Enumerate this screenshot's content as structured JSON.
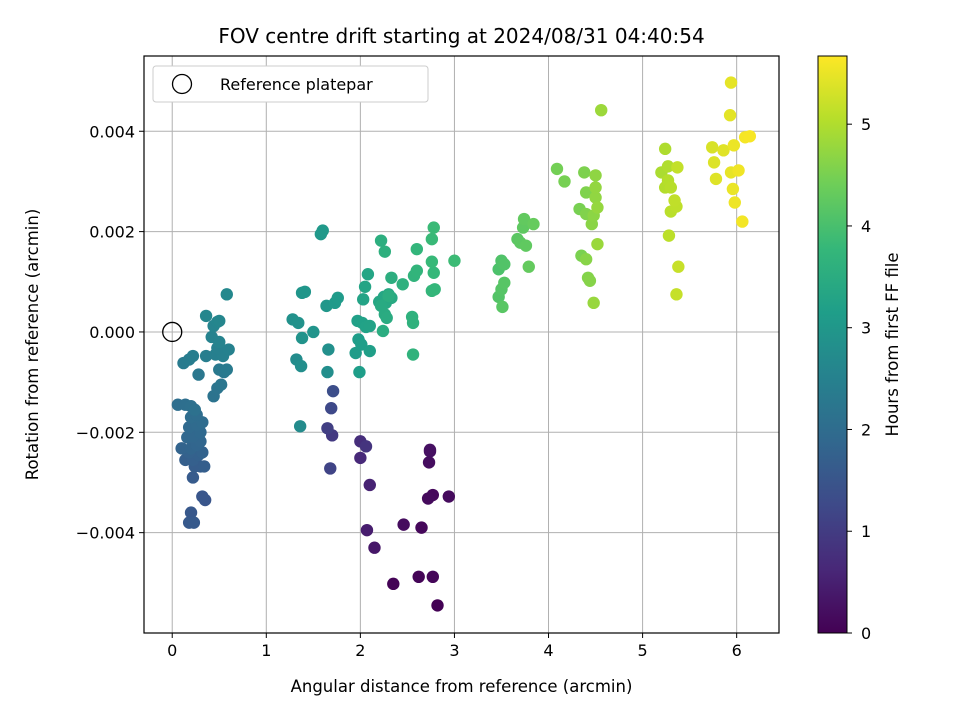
{
  "chart_data": {
    "type": "scatter",
    "title": "FOV centre drift starting at 2024/08/31 04:40:54",
    "xlabel": "Angular distance from reference (arcmin)",
    "ylabel": "Rotation from reference (arcmin)",
    "xlim": [
      -0.3,
      6.45
    ],
    "ylim": [
      -0.006,
      0.0055
    ],
    "x_ticks": [
      "0",
      "1",
      "2",
      "3",
      "4",
      "5",
      "6"
    ],
    "y_ticks": [
      "−0.004",
      "−0.002",
      "0.000",
      "0.002",
      "0.004"
    ],
    "grid": true,
    "legend": {
      "location": "upper-left",
      "entries": [
        "Reference platepar"
      ]
    },
    "reference_point": {
      "x": 0.0,
      "y": 0.0
    },
    "colorbar": {
      "label": "Hours from first FF file",
      "colormap": "viridis",
      "range": [
        0,
        5.67
      ],
      "ticks": [
        "0",
        "1",
        "2",
        "3",
        "4",
        "5"
      ],
      "stops": [
        "#440154",
        "#482878",
        "#3e4a89",
        "#31688e",
        "#26828e",
        "#1f9e89",
        "#35b779",
        "#6ece58",
        "#b5de2b",
        "#fde725"
      ]
    },
    "points": [
      [
        2.82,
        -0.00545,
        0.02
      ],
      [
        2.35,
        -0.00502,
        0.04
      ],
      [
        2.62,
        -0.00488,
        0.06
      ],
      [
        2.77,
        -0.00488,
        0.08
      ],
      [
        2.65,
        -0.0039,
        0.1
      ],
      [
        2.77,
        -0.00325,
        0.12
      ],
      [
        2.72,
        -0.00332,
        0.14
      ],
      [
        2.94,
        -0.00328,
        0.16
      ],
      [
        2.46,
        -0.00384,
        0.18
      ],
      [
        2.73,
        -0.0026,
        0.2
      ],
      [
        2.74,
        -0.00238,
        0.22
      ],
      [
        2.74,
        -0.00235,
        0.25
      ],
      [
        2.15,
        -0.0043,
        0.35
      ],
      [
        2.07,
        -0.00395,
        0.45
      ],
      [
        2.1,
        -0.00305,
        0.55
      ],
      [
        2.0,
        -0.00251,
        0.65
      ],
      [
        2.0,
        -0.00218,
        0.75
      ],
      [
        2.06,
        -0.00228,
        0.85
      ],
      [
        1.7,
        -0.00206,
        0.95
      ],
      [
        1.65,
        -0.00192,
        1.05
      ],
      [
        1.68,
        -0.00272,
        1.15
      ],
      [
        1.69,
        -0.00152,
        1.25
      ],
      [
        1.71,
        -0.00118,
        1.35
      ],
      [
        0.35,
        -0.00335,
        1.5
      ],
      [
        0.32,
        -0.00328,
        1.52
      ],
      [
        0.2,
        -0.0036,
        1.55
      ],
      [
        0.18,
        -0.0038,
        1.58
      ],
      [
        0.23,
        -0.0038,
        1.6
      ],
      [
        0.22,
        -0.0029,
        1.62
      ],
      [
        0.3,
        -0.00268,
        1.64
      ],
      [
        0.24,
        -0.00268,
        1.66
      ],
      [
        0.34,
        -0.00268,
        1.68
      ],
      [
        0.14,
        -0.00255,
        1.7
      ],
      [
        0.22,
        -0.00255,
        1.72
      ],
      [
        0.28,
        -0.00245,
        1.74
      ],
      [
        0.18,
        -0.0024,
        1.76
      ],
      [
        0.32,
        -0.0024,
        1.78
      ],
      [
        0.1,
        -0.00232,
        1.8
      ],
      [
        0.2,
        -0.00232,
        1.82
      ],
      [
        0.26,
        -0.00225,
        1.84
      ],
      [
        0.3,
        -0.00218,
        1.86
      ],
      [
        0.16,
        -0.0021,
        1.88
      ],
      [
        0.22,
        -0.00208,
        1.9
      ],
      [
        0.3,
        -0.002,
        1.92
      ],
      [
        0.18,
        -0.0019,
        1.94
      ],
      [
        0.26,
        -0.00185,
        1.96
      ],
      [
        0.32,
        -0.0018,
        1.98
      ],
      [
        0.2,
        -0.0017,
        2.0
      ],
      [
        0.26,
        -0.00165,
        2.02
      ],
      [
        0.06,
        -0.00145,
        2.04
      ],
      [
        0.14,
        -0.00145,
        2.06
      ],
      [
        0.2,
        -0.00148,
        2.08
      ],
      [
        0.24,
        -0.00155,
        2.1
      ],
      [
        0.44,
        -0.00128,
        2.15
      ],
      [
        0.48,
        -0.00112,
        2.18
      ],
      [
        0.52,
        -0.00105,
        2.22
      ],
      [
        0.28,
        -0.00085,
        2.25
      ],
      [
        0.55,
        -0.0008,
        2.28
      ],
      [
        0.5,
        -0.00075,
        2.3
      ],
      [
        0.58,
        -0.00075,
        2.33
      ],
      [
        0.12,
        -0.00062,
        2.36
      ],
      [
        0.18,
        -0.00055,
        2.38
      ],
      [
        0.22,
        -0.00048,
        2.4
      ],
      [
        0.36,
        -0.00048,
        2.42
      ],
      [
        0.46,
        -0.00045,
        2.44
      ],
      [
        0.54,
        -0.00048,
        2.46
      ],
      [
        0.48,
        -0.00032,
        2.48
      ],
      [
        0.6,
        -0.00035,
        2.5
      ],
      [
        0.42,
        -0.0001,
        2.52
      ],
      [
        0.5,
        -0.0002,
        2.54
      ],
      [
        0.44,
        0.00012,
        2.56
      ],
      [
        0.48,
        0.0002,
        2.58
      ],
      [
        0.36,
        0.00032,
        2.6
      ],
      [
        0.5,
        0.00022,
        2.62
      ],
      [
        0.58,
        0.00075,
        2.66
      ],
      [
        1.36,
        -0.00188,
        2.72
      ],
      [
        1.32,
        -0.00055,
        2.75
      ],
      [
        1.37,
        -0.00068,
        2.78
      ],
      [
        1.65,
        -0.0008,
        2.8
      ],
      [
        1.66,
        -0.00035,
        2.83
      ],
      [
        1.28,
        0.00025,
        2.86
      ],
      [
        1.34,
        0.00018,
        2.88
      ],
      [
        1.38,
        -0.00012,
        2.9
      ],
      [
        1.5,
        0.0,
        2.92
      ],
      [
        1.38,
        0.00078,
        2.95
      ],
      [
        1.41,
        0.0008,
        2.97
      ],
      [
        1.64,
        0.00052,
        3.0
      ],
      [
        1.58,
        0.00195,
        3.02
      ],
      [
        1.6,
        0.00202,
        3.04
      ],
      [
        1.73,
        0.00058,
        3.06
      ],
      [
        1.76,
        0.00068,
        3.08
      ],
      [
        1.95,
        -0.00042,
        3.1
      ],
      [
        1.98,
        -0.00015,
        3.12
      ],
      [
        2.01,
        -0.00025,
        3.14
      ],
      [
        1.99,
        -0.0008,
        3.16
      ],
      [
        2.1,
        -0.00038,
        3.18
      ],
      [
        1.97,
        0.00022,
        3.2
      ],
      [
        2.02,
        0.00018,
        3.22
      ],
      [
        2.06,
        0.0001,
        3.24
      ],
      [
        2.1,
        0.00012,
        3.26
      ],
      [
        2.03,
        0.00065,
        3.28
      ],
      [
        2.05,
        0.0009,
        3.3
      ],
      [
        2.08,
        0.00115,
        3.32
      ],
      [
        2.2,
        0.0006,
        3.34
      ],
      [
        2.25,
        0.0007,
        3.36
      ],
      [
        2.3,
        0.00075,
        3.38
      ],
      [
        2.27,
        0.00058,
        3.4
      ],
      [
        2.33,
        0.00068,
        3.42
      ],
      [
        2.22,
        0.00052,
        3.44
      ],
      [
        2.26,
        0.00035,
        3.46
      ],
      [
        2.28,
        0.00028,
        3.48
      ],
      [
        2.24,
        2e-05,
        3.5
      ],
      [
        2.3,
        0.00072,
        3.52
      ],
      [
        2.33,
        0.00108,
        3.54
      ],
      [
        2.22,
        0.00182,
        3.56
      ],
      [
        2.26,
        0.0016,
        3.58
      ],
      [
        2.45,
        0.00095,
        3.6
      ],
      [
        2.55,
        0.0003,
        3.62
      ],
      [
        2.56,
        0.00018,
        3.64
      ],
      [
        2.56,
        -0.00045,
        3.66
      ],
      [
        2.57,
        0.00112,
        3.68
      ],
      [
        2.6,
        0.00122,
        3.7
      ],
      [
        2.6,
        0.00165,
        3.72
      ],
      [
        2.76,
        0.00082,
        3.74
      ],
      [
        2.79,
        0.00085,
        3.76
      ],
      [
        2.78,
        0.00118,
        3.78
      ],
      [
        2.76,
        0.0014,
        3.8
      ],
      [
        2.76,
        0.00185,
        3.82
      ],
      [
        2.78,
        0.00208,
        3.84
      ],
      [
        3.0,
        0.00142,
        3.86
      ],
      [
        3.47,
        0.00125,
        4.05
      ],
      [
        3.5,
        0.00142,
        4.08
      ],
      [
        3.53,
        0.00135,
        4.1
      ],
      [
        3.47,
        0.0007,
        4.12
      ],
      [
        3.5,
        0.00085,
        4.14
      ],
      [
        3.53,
        0.00098,
        4.16
      ],
      [
        3.51,
        0.0005,
        4.18
      ],
      [
        3.67,
        0.00185,
        4.2
      ],
      [
        3.7,
        0.00178,
        4.22
      ],
      [
        3.73,
        0.00208,
        4.24
      ],
      [
        3.76,
        0.00172,
        4.26
      ],
      [
        3.74,
        0.00225,
        4.28
      ],
      [
        3.79,
        0.0013,
        4.3
      ],
      [
        3.84,
        0.00215,
        4.32
      ],
      [
        4.09,
        0.00325,
        4.45
      ],
      [
        4.17,
        0.003,
        4.48
      ],
      [
        4.33,
        0.00245,
        4.5
      ],
      [
        4.35,
        0.00152,
        4.52
      ],
      [
        4.38,
        0.00318,
        4.54
      ],
      [
        4.4,
        0.00278,
        4.56
      ],
      [
        4.4,
        0.00235,
        4.58
      ],
      [
        4.42,
        0.00108,
        4.6
      ],
      [
        4.44,
        0.00102,
        4.62
      ],
      [
        4.4,
        0.00145,
        4.64
      ],
      [
        4.46,
        0.00215,
        4.66
      ],
      [
        4.48,
        0.00232,
        4.68
      ],
      [
        4.5,
        0.00312,
        4.7
      ],
      [
        4.5,
        0.00268,
        4.72
      ],
      [
        4.5,
        0.00288,
        4.74
      ],
      [
        4.52,
        0.00248,
        4.76
      ],
      [
        4.48,
        0.00058,
        4.78
      ],
      [
        4.52,
        0.00175,
        4.8
      ],
      [
        4.56,
        0.00442,
        4.82
      ],
      [
        5.2,
        0.00318,
        4.95
      ],
      [
        5.24,
        0.00365,
        4.98
      ],
      [
        5.27,
        0.0033,
        5.0
      ],
      [
        5.24,
        0.00288,
        5.02
      ],
      [
        5.27,
        0.00302,
        5.04
      ],
      [
        5.3,
        0.00288,
        5.06
      ],
      [
        5.3,
        0.0024,
        5.08
      ],
      [
        5.28,
        0.00192,
        5.1
      ],
      [
        5.36,
        0.0025,
        5.12
      ],
      [
        5.34,
        0.00262,
        5.14
      ],
      [
        5.37,
        0.00328,
        5.16
      ],
      [
        5.36,
        0.00075,
        5.18
      ],
      [
        5.38,
        0.0013,
        5.2
      ],
      [
        5.74,
        0.00368,
        5.35
      ],
      [
        5.76,
        0.00338,
        5.38
      ],
      [
        5.78,
        0.00305,
        5.4
      ],
      [
        5.86,
        0.00362,
        5.42
      ],
      [
        5.93,
        0.00432,
        5.44
      ],
      [
        5.94,
        0.00497,
        5.46
      ],
      [
        5.94,
        0.00318,
        5.48
      ],
      [
        5.96,
        0.00285,
        5.5
      ],
      [
        5.97,
        0.00372,
        5.52
      ],
      [
        5.98,
        0.00258,
        5.54
      ],
      [
        6.02,
        0.00322,
        5.56
      ],
      [
        6.06,
        0.0022,
        5.58
      ],
      [
        6.09,
        0.00388,
        5.6
      ],
      [
        6.14,
        0.0039,
        5.62
      ]
    ]
  }
}
